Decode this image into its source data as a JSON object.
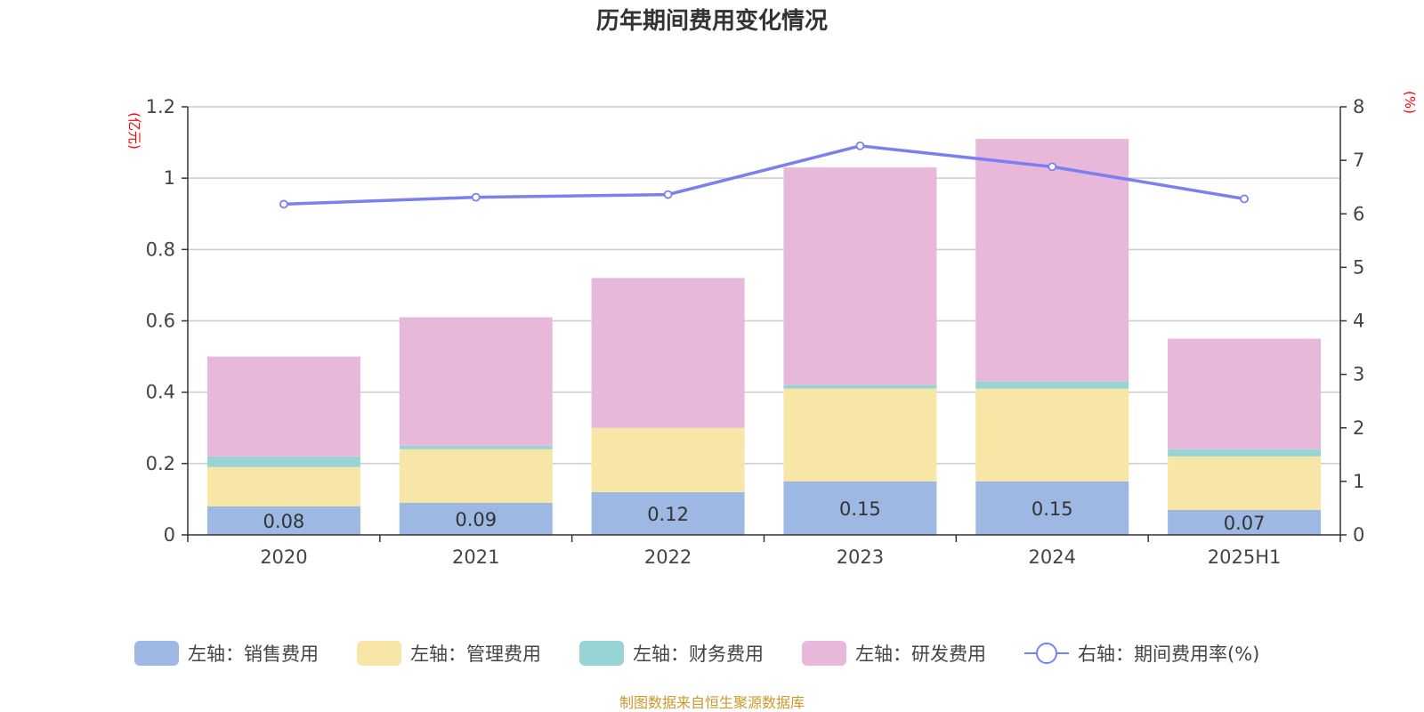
{
  "title": "历年期间费用变化情况",
  "source_note": "制图数据来自恒生聚源数据库",
  "chart_data": {
    "type": "bar",
    "stacked": true,
    "categories": [
      "2020",
      "2021",
      "2022",
      "2023",
      "2024",
      "2025H1"
    ],
    "left_axis": {
      "unit": "(亿元)",
      "ylim": [
        0,
        1.2
      ],
      "ticks": [
        "0",
        "0.2",
        "0.4",
        "0.6",
        "0.8",
        "1",
        "1.2"
      ]
    },
    "right_axis": {
      "unit": "(%)",
      "ylim": [
        0,
        8
      ],
      "ticks": [
        "0",
        "1",
        "2",
        "3",
        "4",
        "5",
        "6",
        "7",
        "8"
      ]
    },
    "grid": true,
    "legend_position": "bottom",
    "series": [
      {
        "name": "左轴：销售费用",
        "axis": "left",
        "type": "bar",
        "color": "#9db8e2",
        "values": [
          0.08,
          0.09,
          0.12,
          0.15,
          0.15,
          0.07
        ],
        "labels": [
          "0.08",
          "0.09",
          "0.12",
          "0.15",
          "0.15",
          "0.07"
        ]
      },
      {
        "name": "左轴：管理费用",
        "axis": "left",
        "type": "bar",
        "color": "#f7e6a6",
        "values": [
          0.11,
          0.15,
          0.18,
          0.26,
          0.26,
          0.15
        ]
      },
      {
        "name": "左轴：财务费用",
        "axis": "left",
        "type": "bar",
        "color": "#98d4d3",
        "values": [
          0.03,
          0.01,
          0.0,
          0.01,
          0.02,
          0.02
        ]
      },
      {
        "name": "左轴：研发费用",
        "axis": "left",
        "type": "bar",
        "color": "#e7b8d9",
        "values": [
          0.28,
          0.36,
          0.42,
          0.61,
          0.68,
          0.31
        ]
      },
      {
        "name": "右轴：期间费用率(%)",
        "axis": "right",
        "type": "line",
        "color": "#7b7ff0",
        "values": [
          6.18,
          6.31,
          6.36,
          7.27,
          6.88,
          6.28
        ]
      }
    ]
  }
}
